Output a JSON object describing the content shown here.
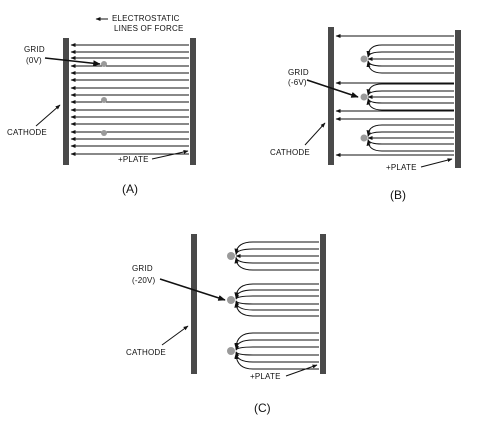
{
  "labels": {
    "electrostatic_line1": "ELECTROSTATIC",
    "electrostatic_line2": "LINES OF FORCE",
    "grid_word": "GRID",
    "grid_a_value": "(0V)",
    "grid_b_value": "(-6V)",
    "grid_c_value": "(-20V)",
    "cathode": "CATHODE",
    "plate": "+PLATE"
  },
  "captions": {
    "a": "(A)",
    "b": "(B)",
    "c": "(C)"
  },
  "colors": {
    "electrode": "#4a4a4a",
    "grid_wire": "#9a9a9a",
    "line": "#111111"
  }
}
